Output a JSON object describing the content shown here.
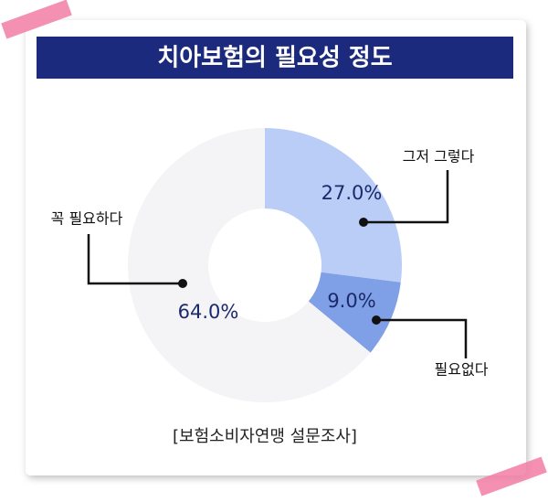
{
  "chart_data": {
    "type": "donut",
    "title": "치아보험의 필요성 정도",
    "categories": [
      "그저 그렇다",
      "필요없다",
      "꼭 필요하다"
    ],
    "values": [
      27.0,
      9.0,
      64.0
    ],
    "value_labels": [
      "27.0%",
      "9.0%",
      "64.0%"
    ],
    "colors": [
      "#b9cdf7",
      "#7f9fe6",
      "#f4f4f6"
    ],
    "source": "[보험소비자연맹 설문조사]"
  }
}
